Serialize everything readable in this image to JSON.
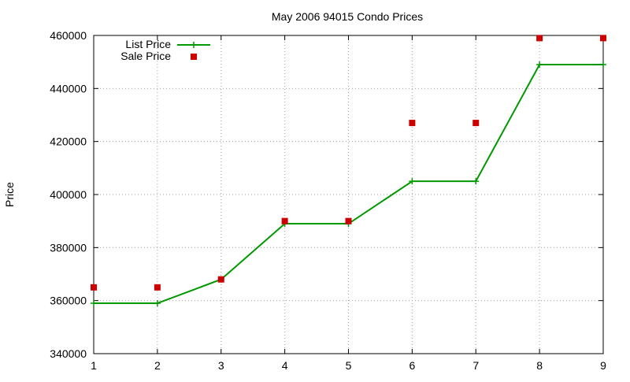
{
  "chart_data": {
    "type": "line",
    "title": "May 2006 94015 Condo Prices",
    "xlabel": "",
    "ylabel": "Price",
    "xlim": [
      1,
      9
    ],
    "ylim": [
      340000,
      460000
    ],
    "x_ticks": [
      "1",
      "2",
      "3",
      "4",
      "5",
      "6",
      "7",
      "8",
      "9"
    ],
    "y_ticks": [
      "340000",
      "360000",
      "380000",
      "400000",
      "420000",
      "440000",
      "460000"
    ],
    "grid": true,
    "legend_position": "top-left",
    "x": [
      1,
      2,
      3,
      4,
      5,
      6,
      7,
      8,
      9
    ],
    "series": [
      {
        "name": "List Price",
        "style": "linespoints",
        "marker": "plus",
        "color": "#009900",
        "values": [
          359000,
          359000,
          368000,
          389000,
          389000,
          405000,
          405000,
          449000,
          449000
        ]
      },
      {
        "name": "Sale Price",
        "style": "points",
        "marker": "square",
        "color": "#cc0000",
        "values": [
          365000,
          365000,
          368000,
          390000,
          390000,
          427000,
          427000,
          459000,
          459000
        ]
      }
    ]
  }
}
